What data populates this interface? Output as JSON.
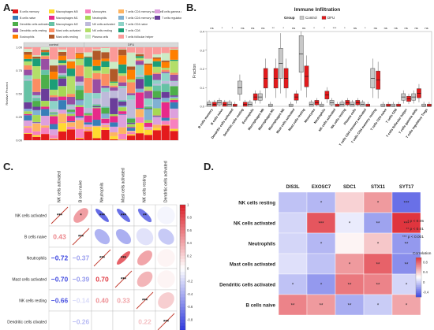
{
  "panels": {
    "a": {
      "letter": "A.",
      "legend": [
        {
          "label": "B cells memory",
          "color": "#e41a1c"
        },
        {
          "label": "Macrophages M0",
          "color": "#ffd92f"
        },
        {
          "label": "Monocytes",
          "color": "#f781bf"
        },
        {
          "label": "T cells CD4 memory activated",
          "color": "#fdb462"
        },
        {
          "label": "T cells gamma delta",
          "color": "#dda0dd"
        },
        {
          "label": "B cells naive",
          "color": "#377eb8"
        },
        {
          "label": "Macrophages M1",
          "color": "#e7298a"
        },
        {
          "label": "Neutrophils",
          "color": "#a6d854"
        },
        {
          "label": "T cells CD4 memory resting",
          "color": "#80b1d3"
        },
        {
          "label": "T cells regulatory Tregs",
          "color": "#6a3d9a"
        },
        {
          "label": "Dendritic cells activated",
          "color": "#4daf4a"
        },
        {
          "label": "Macrophages M2",
          "color": "#66c2a5"
        },
        {
          "label": "NK cells activated",
          "color": "#bebada"
        },
        {
          "label": "T cells CD4 naive",
          "color": "#8dd3c7"
        },
        {
          "label": "",
          "color": ""
        },
        {
          "label": "Dendritic cells resting",
          "color": "#984ea3"
        },
        {
          "label": "Mast cells activated",
          "color": "#fc8d62"
        },
        {
          "label": "NK cells resting",
          "color": "#b3de69"
        },
        {
          "label": "T cells CD8",
          "color": "#1b9e77"
        },
        {
          "label": "",
          "color": ""
        },
        {
          "label": "Eosinophils",
          "color": "#ff7f00"
        },
        {
          "label": "Mast cells resting",
          "color": "#b15928"
        },
        {
          "label": "Plasma cells",
          "color": "#ccebc5"
        },
        {
          "label": "T cells follicular helper",
          "color": "#fb9a99"
        },
        {
          "label": "",
          "color": ""
        }
      ],
      "group_labels": [
        "control",
        "DFU"
      ],
      "ylabel": "Relative Percent",
      "yticks": [
        "0.00",
        "0.25",
        "0.50",
        "0.75",
        "1.00"
      ]
    },
    "b": {
      "letter": "B."
    },
    "c": {
      "letter": "C."
    },
    "d": {
      "letter": "D."
    }
  },
  "chart_data": [
    {
      "type": "bar",
      "subtype": "stacked-proportion",
      "panel": "A",
      "ylabel": "Relative Percent",
      "ylim": [
        0,
        1
      ],
      "groups": [
        {
          "name": "control",
          "samples": 7
        },
        {
          "name": "DFU",
          "samples": 11
        }
      ]
    },
    {
      "type": "box",
      "panel": "B",
      "title": "Immune Infiltration",
      "legend_title": "Group",
      "legend": [
        "Control",
        "DFU"
      ],
      "colors": {
        "Control": "#c8c8c8",
        "DFU": "#e31a1c"
      },
      "ylabel": "Fraction",
      "ylim": [
        0,
        0.4
      ],
      "yticks": [
        0.0,
        0.1,
        0.2,
        0.3,
        0.4
      ],
      "categories": [
        "B cells memory",
        "B cells naive",
        "Dendritic cells activated",
        "Dendritic cells resting",
        "Eosinophils",
        "Macrophages M0",
        "Macrophages M1",
        "Macrophages M2",
        "Mast cells activated",
        "Mast cells resting",
        "Monocytes",
        "Neutrophils",
        "NK cells activated",
        "NK cells resting",
        "Plasma cells",
        "T cells CD4 memory activated",
        "T cells CD4 memory resting",
        "T cells CD4 naive",
        "T cells CD8",
        "T cells follicular helper",
        "T cells gamma delta",
        "T cells regulatory Tregs"
      ],
      "significance": [
        "ns",
        "*",
        "*",
        "ns",
        "ns",
        "ns",
        "**",
        "*",
        "ns",
        "ns",
        "*",
        "*",
        "***",
        "*",
        "ns",
        "*",
        "ns",
        "ns",
        "ns",
        "ns",
        "ns",
        "ns"
      ],
      "control_median": [
        0.01,
        0.02,
        0.01,
        0.1,
        0.01,
        0.05,
        0.0,
        0.23,
        0.0,
        0.28,
        0.01,
        0.0,
        0.02,
        0.01,
        0.01,
        0.01,
        0.15,
        0.0,
        0.0,
        0.05,
        0.05,
        0.0
      ],
      "dfu_median": [
        0.01,
        0.01,
        0.0,
        0.01,
        0.05,
        0.15,
        0.15,
        0.15,
        0.05,
        0.16,
        0.02,
        0.06,
        0.0,
        0.02,
        0.02,
        0.0,
        0.14,
        0.0,
        0.0,
        0.04,
        0.07,
        0.0
      ]
    },
    {
      "type": "heatmap",
      "subtype": "correlogram",
      "panel": "C",
      "labels": [
        "NK cells activated",
        "B cells naive",
        "Neutrophils",
        "Mast cells activated",
        "NK cells resting",
        "Dendritic cells ctivated"
      ],
      "column_labels": [
        "NK cells activated",
        "B cells naive",
        "Neutrophils",
        "Mast cells activated",
        "NK cells resting",
        "Dendritic cells activated"
      ],
      "colorbar_ticks": [
        "1",
        "0.8",
        "0.6",
        "0.4",
        "0.2",
        "0",
        "-0.2",
        "-0.4",
        "-0.6",
        "-0.8",
        "-1"
      ],
      "lower_values": {
        "B cells naive": [
          0.43
        ],
        "Neutrophils": [
          -0.72,
          -0.37
        ],
        "Mast cells activated": [
          -0.7,
          -0.39,
          0.7
        ],
        "NK cells resting": [
          -0.66,
          -0.14,
          0.4,
          0.33
        ],
        "Dendritic cells ctivated": [
          -0.05,
          -0.26,
          0.05,
          0.05,
          0.22
        ]
      },
      "lower_labels": {
        "B cells naive": [
          "0.43"
        ],
        "Neutrophils": [
          "−0.72",
          "−0.37"
        ],
        "Mast cells activated": [
          "−0.70",
          "−0.39",
          "0.70"
        ],
        "NK cells resting": [
          "−0.66",
          "−0.14",
          "0.40",
          "0.33"
        ],
        "Dendritic cells ctivated": [
          "",
          "−0.26",
          "",
          "",
          "0.22"
        ]
      },
      "upper_stars": {
        "NK cells activated": [
          "*",
          "***",
          "***",
          "**",
          ""
        ],
        "B cells naive": [
          "",
          "",
          "",
          ""
        ],
        "Neutrophils": [
          "***",
          "",
          ""
        ],
        "Mast cells activated": [
          "",
          ""
        ],
        "NK cells resting": [
          ""
        ]
      },
      "diagonal_stars": "***"
    },
    {
      "type": "heatmap",
      "panel": "D",
      "columns": [
        "DIS3L",
        "EXOSC7",
        "SDC1",
        "STX11",
        "SYT17"
      ],
      "rows": [
        "NK cells resting",
        "NK cells activated",
        "Neutrophils",
        "Mast cells activated",
        "Dendritic cells activated",
        "B cells naive"
      ],
      "values": [
        [
          -0.3,
          -0.35,
          0.2,
          0.45,
          -0.7
        ],
        [
          -0.2,
          0.75,
          -0.1,
          -0.45,
          0.9
        ],
        [
          -0.2,
          -0.35,
          0.05,
          0.25,
          -0.5
        ],
        [
          -0.15,
          -0.3,
          0.45,
          0.7,
          -0.55
        ],
        [
          -0.3,
          -0.5,
          0.6,
          0.55,
          -0.2
        ],
        [
          0.55,
          0.45,
          -0.4,
          -0.25,
          0.4
        ]
      ],
      "stars": [
        [
          "",
          "*",
          "",
          "*",
          "***"
        ],
        [
          "",
          "***",
          "*",
          "**",
          "***"
        ],
        [
          "",
          "*",
          "",
          "*",
          "**"
        ],
        [
          "",
          "",
          "*",
          "**",
          "**"
        ],
        [
          "*",
          "*",
          "**",
          "**",
          "*"
        ],
        [
          "**",
          "**",
          "**",
          "*",
          "*"
        ]
      ],
      "legend_notes": [
        "* p < 0.05",
        "** p < 0.01",
        "*** p < 0.001"
      ],
      "colorbar_title": "Correlation",
      "colorbar_ticks": [
        "0.8",
        "0.4",
        "0",
        "-0.4"
      ]
    }
  ]
}
